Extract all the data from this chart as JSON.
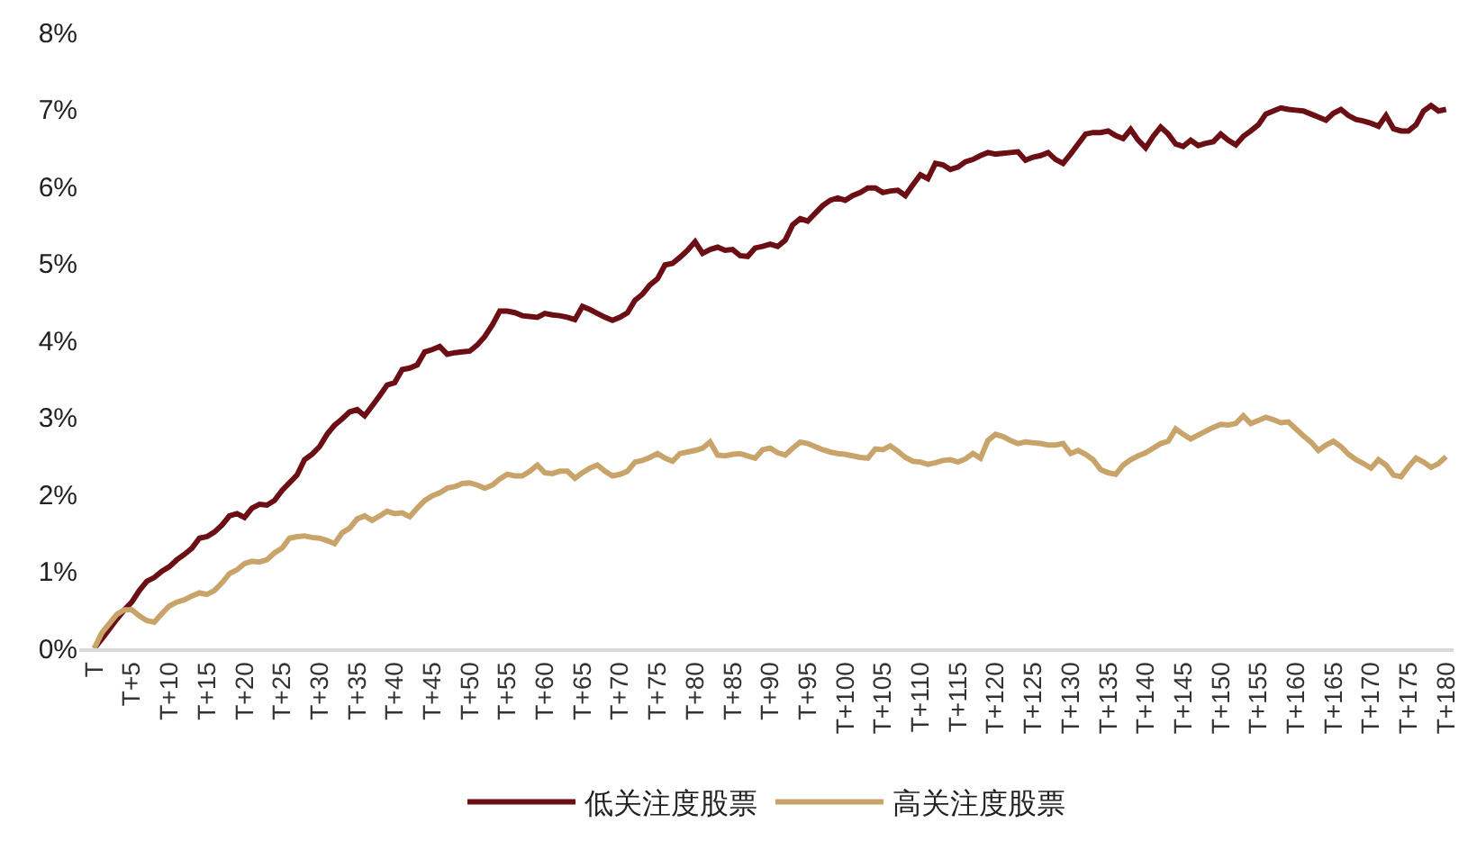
{
  "chart_data": {
    "type": "line",
    "categories": [
      "T",
      null,
      null,
      null,
      null,
      "T+5",
      null,
      null,
      null,
      null,
      "T+10",
      null,
      null,
      null,
      null,
      "T+15",
      null,
      null,
      null,
      null,
      "T+20",
      null,
      null,
      null,
      null,
      "T+25",
      null,
      null,
      null,
      null,
      "T+30",
      null,
      null,
      null,
      null,
      "T+35",
      null,
      null,
      null,
      null,
      "T+40",
      null,
      null,
      null,
      null,
      "T+45",
      null,
      null,
      null,
      null,
      "T+50",
      null,
      null,
      null,
      null,
      "T+55",
      null,
      null,
      null,
      null,
      "T+60",
      null,
      null,
      null,
      null,
      "T+65",
      null,
      null,
      null,
      null,
      "T+70",
      null,
      null,
      null,
      null,
      "T+75",
      null,
      null,
      null,
      null,
      "T+80",
      null,
      null,
      null,
      null,
      "T+85",
      null,
      null,
      null,
      null,
      "T+90",
      null,
      null,
      null,
      null,
      "T+95",
      null,
      null,
      null,
      null,
      "T+100",
      null,
      null,
      null,
      null,
      "T+105",
      null,
      null,
      null,
      null,
      "T+110",
      null,
      null,
      null,
      null,
      "T+115",
      null,
      null,
      null,
      null,
      "T+120",
      null,
      null,
      null,
      null,
      "T+125",
      null,
      null,
      null,
      null,
      "T+130",
      null,
      null,
      null,
      null,
      "T+135",
      null,
      null,
      null,
      null,
      "T+140",
      null,
      null,
      null,
      null,
      "T+145",
      null,
      null,
      null,
      null,
      "T+150",
      null,
      null,
      null,
      null,
      "T+155",
      null,
      null,
      null,
      null,
      "T+160",
      null,
      null,
      null,
      null,
      "T+165",
      null,
      null,
      null,
      null,
      "T+170",
      null,
      null,
      null,
      null,
      "T+175",
      null,
      null,
      null,
      null,
      "T+180"
    ],
    "series": [
      {
        "name": "低关注度股票",
        "color": "#6b0f14",
        "values": [
          0,
          0.12,
          0.25,
          0.38,
          0.5,
          0.6,
          0.75,
          0.87,
          0.92,
          1.0,
          1.06,
          1.15,
          1.22,
          1.3,
          1.43,
          1.45,
          1.51,
          1.6,
          1.72,
          1.75,
          1.7,
          1.82,
          1.87,
          1.86,
          1.92,
          2.05,
          2.15,
          2.25,
          2.45,
          2.52,
          2.62,
          2.78,
          2.9,
          2.98,
          3.07,
          3.1,
          3.02,
          3.15,
          3.28,
          3.42,
          3.45,
          3.62,
          3.64,
          3.68,
          3.85,
          3.88,
          3.92,
          3.82,
          3.84,
          3.85,
          3.86,
          3.94,
          4.05,
          4.2,
          4.38,
          4.38,
          4.36,
          4.32,
          4.31,
          4.3,
          4.35,
          4.33,
          4.32,
          4.3,
          4.27,
          4.44,
          4.4,
          4.35,
          4.3,
          4.26,
          4.3,
          4.36,
          4.52,
          4.6,
          4.72,
          4.8,
          4.98,
          5.0,
          5.08,
          5.17,
          5.28,
          5.13,
          5.18,
          5.21,
          5.17,
          5.18,
          5.1,
          5.09,
          5.2,
          5.22,
          5.25,
          5.22,
          5.3,
          5.5,
          5.58,
          5.55,
          5.65,
          5.75,
          5.82,
          5.85,
          5.82,
          5.88,
          5.92,
          5.98,
          5.98,
          5.92,
          5.94,
          5.95,
          5.88,
          6.02,
          6.15,
          6.1,
          6.3,
          6.28,
          6.22,
          6.25,
          6.32,
          6.35,
          6.4,
          6.44,
          6.42,
          6.43,
          6.44,
          6.45,
          6.34,
          6.38,
          6.4,
          6.44,
          6.35,
          6.3,
          6.42,
          6.55,
          6.68,
          6.7,
          6.7,
          6.72,
          6.66,
          6.62,
          6.74,
          6.6,
          6.5,
          6.65,
          6.77,
          6.68,
          6.55,
          6.52,
          6.6,
          6.53,
          6.56,
          6.58,
          6.68,
          6.6,
          6.54,
          6.65,
          6.72,
          6.8,
          6.94,
          6.98,
          7.02,
          7.0,
          6.99,
          6.98,
          6.94,
          6.9,
          6.86,
          6.95,
          7.0,
          6.92,
          6.87,
          6.85,
          6.82,
          6.78,
          6.92,
          6.75,
          6.72,
          6.72,
          6.8,
          6.98,
          7.05,
          6.98,
          7.0
        ]
      },
      {
        "name": "高关注度股票",
        "color": "#c9a46a",
        "values": [
          0,
          0.2,
          0.32,
          0.44,
          0.5,
          0.5,
          0.42,
          0.36,
          0.34,
          0.45,
          0.55,
          0.6,
          0.63,
          0.68,
          0.72,
          0.7,
          0.75,
          0.85,
          0.97,
          1.02,
          1.1,
          1.13,
          1.12,
          1.15,
          1.24,
          1.3,
          1.43,
          1.45,
          1.46,
          1.44,
          1.43,
          1.4,
          1.36,
          1.5,
          1.56,
          1.68,
          1.72,
          1.66,
          1.72,
          1.78,
          1.75,
          1.76,
          1.71,
          1.82,
          1.92,
          1.98,
          2.02,
          2.08,
          2.1,
          2.14,
          2.15,
          2.12,
          2.08,
          2.12,
          2.2,
          2.26,
          2.24,
          2.24,
          2.3,
          2.38,
          2.28,
          2.27,
          2.3,
          2.3,
          2.21,
          2.28,
          2.34,
          2.38,
          2.3,
          2.24,
          2.26,
          2.3,
          2.42,
          2.44,
          2.48,
          2.53,
          2.47,
          2.43,
          2.53,
          2.55,
          2.57,
          2.6,
          2.68,
          2.51,
          2.5,
          2.52,
          2.53,
          2.5,
          2.47,
          2.58,
          2.6,
          2.54,
          2.51,
          2.6,
          2.68,
          2.66,
          2.62,
          2.58,
          2.55,
          2.53,
          2.52,
          2.5,
          2.48,
          2.47,
          2.59,
          2.58,
          2.63,
          2.56,
          2.48,
          2.43,
          2.42,
          2.39,
          2.41,
          2.44,
          2.45,
          2.42,
          2.46,
          2.53,
          2.47,
          2.7,
          2.78,
          2.75,
          2.7,
          2.66,
          2.68,
          2.67,
          2.66,
          2.64,
          2.64,
          2.66,
          2.53,
          2.57,
          2.52,
          2.45,
          2.32,
          2.28,
          2.26,
          2.38,
          2.45,
          2.5,
          2.54,
          2.6,
          2.66,
          2.69,
          2.85,
          2.78,
          2.72,
          2.77,
          2.82,
          2.87,
          2.91,
          2.9,
          2.92,
          3.02,
          2.92,
          2.96,
          3.0,
          2.97,
          2.93,
          2.94,
          2.85,
          2.76,
          2.68,
          2.57,
          2.64,
          2.69,
          2.62,
          2.52,
          2.45,
          2.4,
          2.34,
          2.45,
          2.38,
          2.25,
          2.23,
          2.36,
          2.47,
          2.42,
          2.35,
          2.4,
          2.49
        ]
      }
    ],
    "ylim": [
      0,
      8
    ],
    "yticks": [
      {
        "value": 0,
        "label": "0%"
      },
      {
        "value": 1,
        "label": "1%"
      },
      {
        "value": 2,
        "label": "2%"
      },
      {
        "value": 3,
        "label": "3%"
      },
      {
        "value": 4,
        "label": "4%"
      },
      {
        "value": 5,
        "label": "5%"
      },
      {
        "value": 6,
        "label": "6%"
      },
      {
        "value": 7,
        "label": "7%"
      },
      {
        "value": 8,
        "label": "8%"
      }
    ],
    "grid": false,
    "legend": "bottom",
    "marker": "none",
    "line_style": "solid"
  }
}
